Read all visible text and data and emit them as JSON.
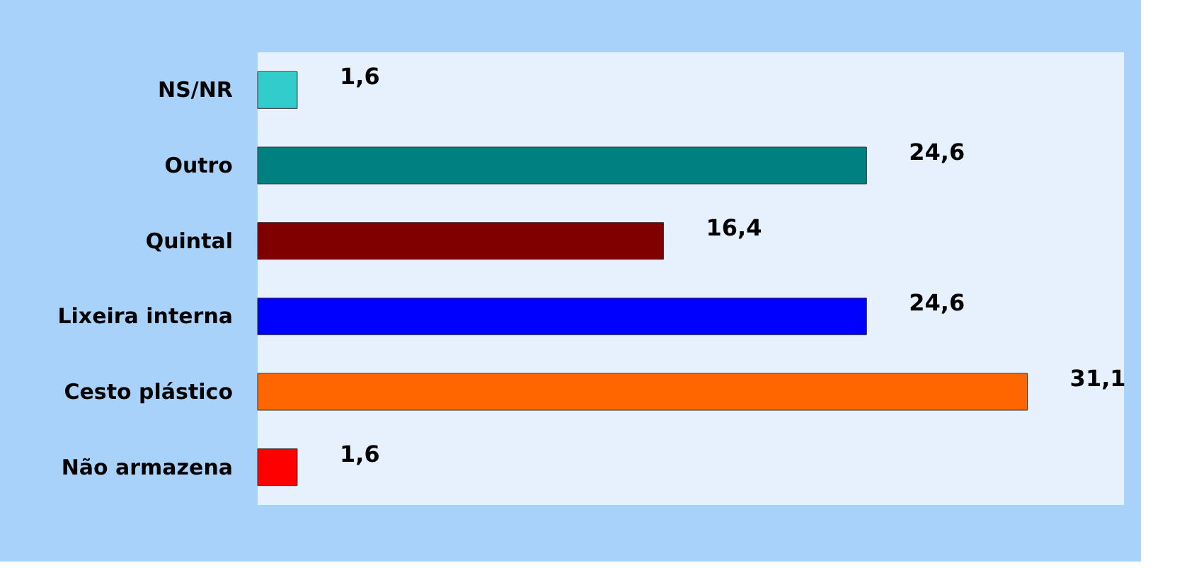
{
  "chart_data": {
    "type": "bar",
    "orientation": "horizontal",
    "categories": [
      "NS/NR",
      "Outro",
      "Quintal",
      "Lixeira interna",
      "Cesto plástico",
      "Não armazena"
    ],
    "values": [
      1.6,
      24.6,
      16.4,
      24.6,
      31.1,
      1.6
    ],
    "colors": [
      "#33cccc",
      "#008080",
      "#800000",
      "#0000ff",
      "#ff6600",
      "#ff0000"
    ],
    "value_labels": [
      "1,6",
      "24,6",
      "16,4",
      "24,6",
      "31,1",
      "1,6"
    ],
    "tick_labels": "y"
  }
}
